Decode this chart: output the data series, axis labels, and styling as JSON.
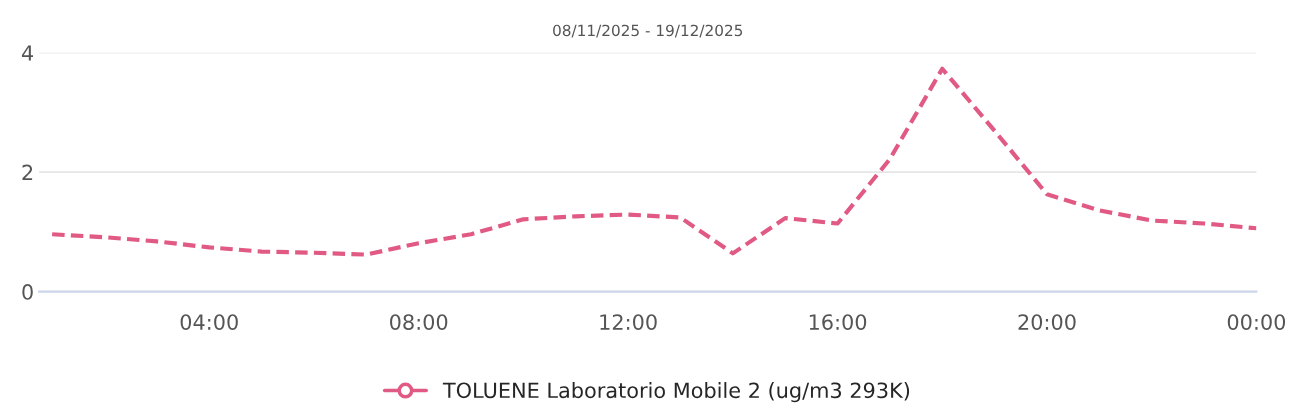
{
  "chart_data": {
    "type": "line",
    "title": "08/11/2025 - 19/12/2025",
    "x": [
      1,
      2,
      3,
      4,
      5,
      6,
      7,
      8,
      9,
      10,
      11,
      12,
      13,
      14,
      15,
      16,
      17,
      18,
      19,
      20,
      21,
      22,
      23,
      24
    ],
    "series": [
      {
        "name": "TOLUENE Laboratorio Mobile 2 (ug/m3 293K)",
        "color": "#e05a84",
        "values": [
          0.96,
          0.91,
          0.84,
          0.74,
          0.67,
          0.65,
          0.62,
          0.81,
          0.96,
          1.21,
          1.26,
          1.29,
          1.24,
          0.64,
          1.23,
          1.14,
          2.22,
          3.73,
          2.69,
          1.63,
          1.36,
          1.19,
          1.14,
          1.06
        ]
      }
    ],
    "xlim": [
      0.75,
      24
    ],
    "xticks": [
      {
        "value": 4,
        "label": "04:00"
      },
      {
        "value": 8,
        "label": "08:00"
      },
      {
        "value": 12,
        "label": "12:00"
      },
      {
        "value": 16,
        "label": "16:00"
      },
      {
        "value": 20,
        "label": "20:00"
      },
      {
        "value": 24,
        "label": "00:00"
      }
    ],
    "ylim": [
      0,
      4
    ],
    "yticks": [
      0,
      2,
      4
    ],
    "grid": "y",
    "legend": "bottom",
    "line_style": "dashed",
    "marker": "none"
  }
}
